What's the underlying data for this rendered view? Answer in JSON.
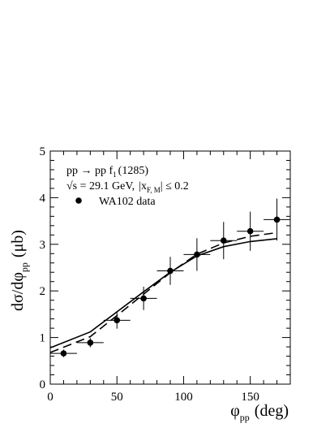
{
  "chart_data": {
    "type": "scatter",
    "title": "",
    "xlabel": "φ",
    "xlabel_sub": "pp",
    "xlabel_unit": "(deg)",
    "ylabel": "dσ/dφ",
    "ylabel_sub": "pp",
    "ylabel_unit": "(μb)",
    "xlim": [
      0,
      180
    ],
    "ylim": [
      0,
      5
    ],
    "x_ticks": [
      0,
      50,
      100,
      150
    ],
    "y_ticks": [
      0,
      1,
      2,
      3,
      4,
      5
    ],
    "grid": false,
    "legend_position": "top-left",
    "annotations": {
      "reaction": "pp → pp f",
      "reaction_sub": "1",
      "reaction_mass": "(1285)",
      "energy_prefix": "√s = 29.1 GeV,",
      "energy_cut": "|x",
      "energy_cut_sub": "F, M",
      "energy_cut_suffix": "| ≤ 0.2"
    },
    "series": [
      {
        "name": "WA102 data",
        "marker": "circle",
        "points": [
          {
            "x": 10,
            "y": 0.66,
            "xerr": 10,
            "yerr": 0.08
          },
          {
            "x": 30,
            "y": 0.89,
            "xerr": 10,
            "yerr": 0.1
          },
          {
            "x": 50,
            "y": 1.37,
            "xerr": 10,
            "yerr": 0.18
          },
          {
            "x": 70,
            "y": 1.84,
            "xerr": 10,
            "yerr": 0.25
          },
          {
            "x": 90,
            "y": 2.43,
            "xerr": 10,
            "yerr": 0.3
          },
          {
            "x": 110,
            "y": 2.78,
            "xerr": 10,
            "yerr": 0.35
          },
          {
            "x": 130,
            "y": 3.08,
            "xerr": 10,
            "yerr": 0.4
          },
          {
            "x": 150,
            "y": 3.28,
            "xerr": 10,
            "yerr": 0.42
          },
          {
            "x": 170,
            "y": 3.53,
            "xerr": 10,
            "yerr": 0.45
          }
        ]
      },
      {
        "marker": "line",
        "style": "solid",
        "x": [
          0,
          30,
          50,
          70,
          90,
          110,
          130,
          150,
          170
        ],
        "y": [
          0.78,
          1.12,
          1.55,
          1.98,
          2.4,
          2.75,
          2.95,
          3.06,
          3.12
        ]
      },
      {
        "marker": "line",
        "style": "dashed",
        "x": [
          0,
          30,
          50,
          70,
          90,
          110,
          130,
          150,
          170
        ],
        "y": [
          0.68,
          1.02,
          1.47,
          1.93,
          2.39,
          2.79,
          3.03,
          3.17,
          3.25
        ]
      }
    ]
  }
}
